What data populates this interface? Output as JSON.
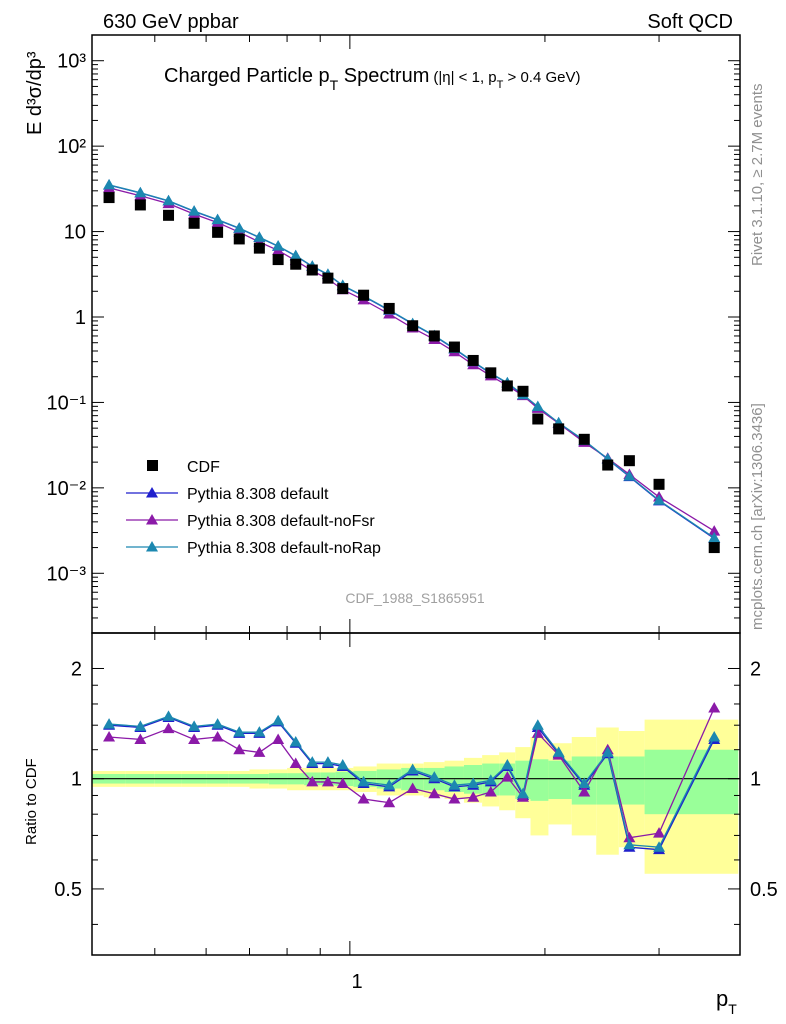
{
  "header": {
    "left": "630 GeV ppbar",
    "right": "Soft QCD"
  },
  "side_labels": {
    "rivet": "Rivet 3.1.10, ≥ 2.7M events",
    "mcplots": "mcplots.cern.ch [arXiv:1306.3436]"
  },
  "chart_data": {
    "type": "scatter",
    "title": {
      "main": "Charged Particle p",
      "main_sub": "T",
      "main_suffix": " Spectrum",
      "cut": "(|η| < 1, p",
      "cut_sub": "T",
      "cut_suffix": " > 0.4 GeV)"
    },
    "analysis_id": "CDF_1988_S1865951",
    "xlabel": "p",
    "xlabel_sub": "T",
    "x_scale": "log",
    "xlim": [
      0.4,
      4.0
    ],
    "x_tick_labels": [
      "1"
    ],
    "upper": {
      "ylabel": "E d³σ/dp³",
      "y_scale": "log",
      "ylim": [
        0.0002,
        2000
      ],
      "y_tick_labels": [
        "10⁻³",
        "10⁻²",
        "10⁻¹",
        "1",
        "10",
        "10²",
        "10³"
      ]
    },
    "ratio": {
      "ylabel": "Ratio to CDF",
      "ylim": [
        0.33,
        2.5
      ],
      "y_tick_labels": [
        "0.5",
        "1",
        "2"
      ],
      "reference_line": 1.0
    },
    "x": [
      0.425,
      0.475,
      0.525,
      0.575,
      0.625,
      0.675,
      0.725,
      0.775,
      0.825,
      0.875,
      0.925,
      0.975,
      1.05,
      1.15,
      1.25,
      1.35,
      1.45,
      1.55,
      1.65,
      1.75,
      1.85,
      1.95,
      2.1,
      2.3,
      2.5,
      2.7,
      3.0,
      3.65
    ],
    "data_series": {
      "name": "CDF",
      "values": [
        25,
        20.5,
        15.5,
        12.5,
        9.8,
        8.2,
        6.4,
        4.7,
        4.15,
        3.55,
        2.85,
        2.15,
        1.8,
        1.26,
        0.79,
        0.6,
        0.445,
        0.31,
        0.222,
        0.156,
        0.135,
        0.064,
        0.049,
        0.037,
        0.0185,
        0.0208,
        0.011,
        0.002
      ]
    },
    "series": [
      {
        "name": "Pythia 8.308 default",
        "color": "#1f1fcc",
        "ratio": [
          1.4,
          1.38,
          1.47,
          1.38,
          1.4,
          1.33,
          1.33,
          1.43,
          1.25,
          1.1,
          1.1,
          1.08,
          0.97,
          0.95,
          1.05,
          1.0,
          0.95,
          0.96,
          0.98,
          1.08,
          0.9,
          1.38,
          1.17,
          0.96,
          1.17,
          0.65,
          0.64,
          1.28
        ]
      },
      {
        "name": "Pythia 8.308 default-noFsr",
        "color": "#8b1aa8",
        "ratio": [
          1.3,
          1.28,
          1.37,
          1.28,
          1.3,
          1.2,
          1.18,
          1.28,
          1.1,
          0.98,
          0.98,
          0.97,
          0.88,
          0.86,
          0.94,
          0.91,
          0.88,
          0.89,
          0.92,
          1.01,
          0.89,
          1.33,
          1.16,
          0.92,
          1.2,
          0.69,
          0.71,
          1.56
        ]
      },
      {
        "name": "Pythia 8.308 default-noRap",
        "color": "#1c88b0",
        "ratio": [
          1.41,
          1.39,
          1.48,
          1.39,
          1.41,
          1.34,
          1.34,
          1.44,
          1.26,
          1.11,
          1.11,
          1.09,
          0.98,
          0.96,
          1.06,
          1.01,
          0.96,
          0.97,
          0.99,
          1.09,
          0.91,
          1.4,
          1.18,
          0.97,
          1.18,
          0.66,
          0.65,
          1.3
        ]
      }
    ],
    "uncertainty_bands": {
      "stat_half_width": [
        0.03,
        0.03,
        0.03,
        0.03,
        0.03,
        0.03,
        0.03,
        0.035,
        0.035,
        0.04,
        0.04,
        0.045,
        0.05,
        0.06,
        0.07,
        0.07,
        0.08,
        0.09,
        0.1,
        0.1,
        0.12,
        0.13,
        0.12,
        0.15,
        0.15,
        0.15,
        0.2,
        0.2
      ],
      "total_half_width": [
        0.05,
        0.05,
        0.05,
        0.05,
        0.05,
        0.05,
        0.06,
        0.06,
        0.07,
        0.07,
        0.07,
        0.07,
        0.08,
        0.1,
        0.1,
        0.11,
        0.12,
        0.14,
        0.16,
        0.18,
        0.22,
        0.3,
        0.25,
        0.3,
        0.38,
        0.35,
        0.45,
        0.45
      ],
      "inner_color": "#99ff99",
      "outer_color": "#ffff99"
    }
  }
}
